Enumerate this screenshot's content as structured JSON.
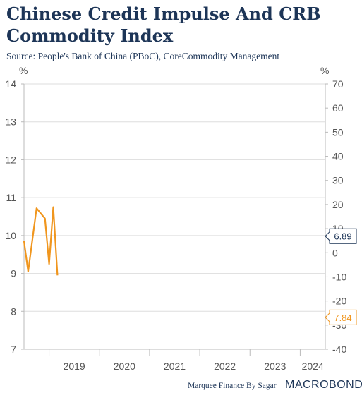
{
  "title": "Chinese Credit Impulse And CRB Commodity Index",
  "subtitle": "Source: People's Bank of China (PBoC), CoreCommodity Management",
  "footer": {
    "credit": "Marquee Finance By Sagar",
    "logo": "MACROBOND"
  },
  "colors": {
    "impulse": "#f0961e",
    "crb": "#1d3557",
    "grid": "#dddddd",
    "title": "#1d3557"
  },
  "chart_data": {
    "type": "line",
    "title": "Chinese Credit Impulse And CRB Commodity Index",
    "left_axis": {
      "unit": "%",
      "ylim": [
        7,
        14
      ],
      "ticks": [
        "7",
        "8",
        "9",
        "10",
        "11",
        "12",
        "13",
        "14"
      ]
    },
    "right_axis": {
      "unit": "%",
      "ylim": [
        -40,
        70
      ],
      "ticks": [
        "-40",
        "-30",
        "-20",
        "-10",
        "0",
        "10",
        "20",
        "30",
        "40",
        "50",
        "60",
        "70"
      ]
    },
    "x_ticks": [
      "2019",
      "2020",
      "2021",
      "2022",
      "2023",
      "2024"
    ],
    "xlim": [
      "2018-07",
      "2024-07"
    ],
    "grid": true,
    "series": [
      {
        "axis": "left",
        "color": "#f0961e",
        "last_value_label": "7.84",
        "points": [
          {
            "x": "2018-07",
            "y": 9.85
          },
          {
            "x": "2018-08",
            "y": 9.05
          },
          {
            "x": "2018-10",
            "y": 10.72
          },
          {
            "x": "2018-12",
            "y": 10.45
          },
          {
            "x": "2019-01",
            "y": 9.25
          },
          {
            "x": "2019-02",
            "y": 10.75
          },
          {
            "x": "2019-03",
            "y": 8.95
          }
        ]
      },
      {
        "axis": "right",
        "color": "#1d3557",
        "last_value_label": "6.89",
        "points": []
      }
    ]
  }
}
